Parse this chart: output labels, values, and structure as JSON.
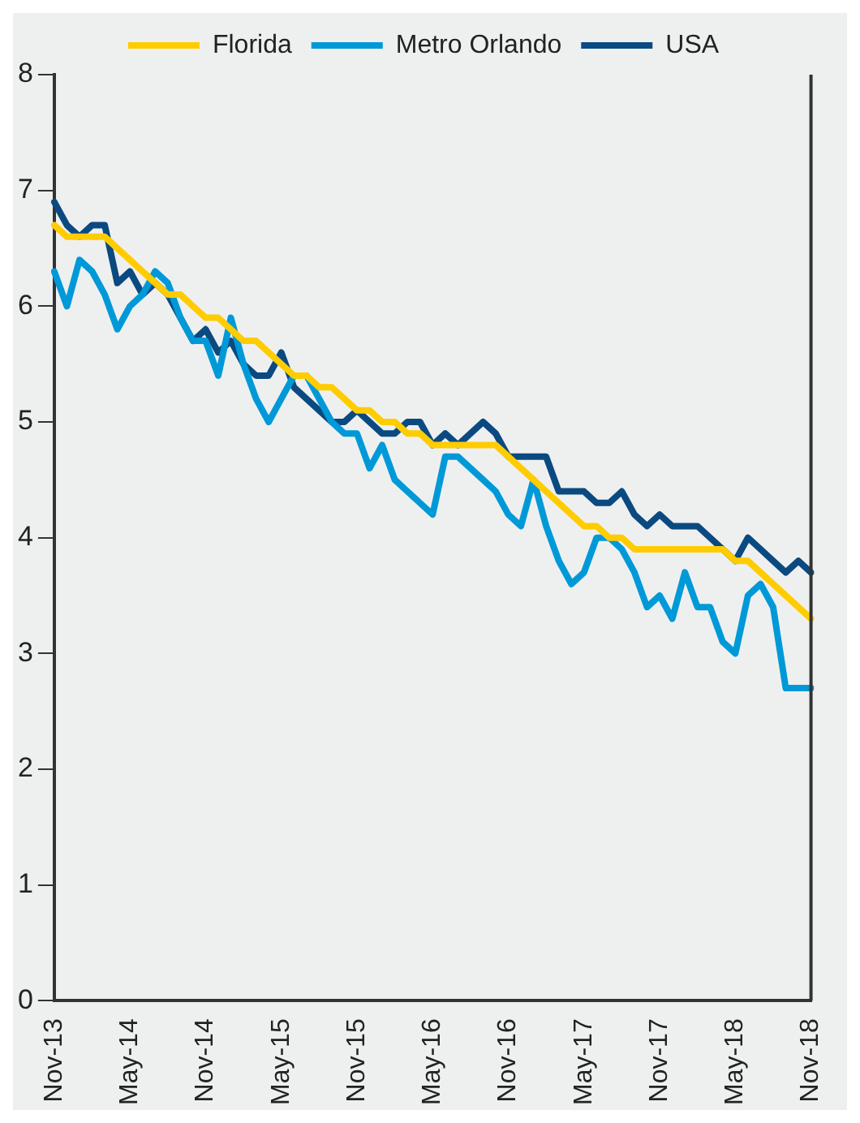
{
  "chart_data": {
    "type": "line",
    "categories": [
      "Nov-13",
      null,
      null,
      null,
      null,
      null,
      "May-14",
      null,
      null,
      null,
      null,
      null,
      "Nov-14",
      null,
      null,
      null,
      null,
      null,
      "May-15",
      null,
      null,
      null,
      null,
      null,
      "Nov-15",
      null,
      null,
      null,
      null,
      null,
      "May-16",
      null,
      null,
      null,
      null,
      null,
      "Nov-16",
      null,
      null,
      null,
      null,
      null,
      "May-17",
      null,
      null,
      null,
      null,
      null,
      "Nov-17",
      null,
      null,
      null,
      null,
      null,
      "May-18",
      null,
      null,
      null,
      null,
      null,
      "Nov-18"
    ],
    "series": [
      {
        "name": "Florida",
        "color": "#ffcc00",
        "values": [
          6.7,
          6.6,
          6.6,
          6.6,
          6.6,
          6.5,
          6.4,
          6.3,
          6.2,
          6.1,
          6.1,
          6.0,
          5.9,
          5.9,
          5.8,
          5.7,
          5.7,
          5.6,
          5.5,
          5.4,
          5.4,
          5.3,
          5.3,
          5.2,
          5.1,
          5.1,
          5.0,
          5.0,
          4.9,
          4.9,
          4.8,
          4.8,
          4.8,
          4.8,
          4.8,
          4.8,
          4.7,
          4.6,
          4.5,
          4.4,
          4.3,
          4.2,
          4.1,
          4.1,
          4.0,
          4.0,
          3.9,
          3.9,
          3.9,
          3.9,
          3.9,
          3.9,
          3.9,
          3.9,
          3.8,
          3.8,
          3.7,
          3.6,
          3.5,
          3.4,
          3.3
        ]
      },
      {
        "name": "Metro Orlando",
        "color": "#0099d8",
        "values": [
          6.3,
          6.0,
          6.4,
          6.3,
          6.1,
          5.8,
          6.0,
          6.1,
          6.3,
          6.2,
          5.9,
          5.7,
          5.7,
          5.4,
          5.9,
          5.5,
          5.2,
          5.0,
          5.2,
          5.4,
          5.4,
          5.2,
          5.0,
          4.9,
          4.9,
          4.6,
          4.8,
          4.5,
          4.4,
          4.3,
          4.2,
          4.7,
          4.7,
          4.6,
          4.5,
          4.4,
          4.2,
          4.1,
          4.5,
          4.1,
          3.8,
          3.6,
          3.7,
          4.0,
          4.0,
          3.9,
          3.7,
          3.4,
          3.5,
          3.3,
          3.7,
          3.4,
          3.4,
          3.1,
          3.0,
          3.5,
          3.6,
          3.4,
          2.7,
          2.7,
          2.7
        ]
      },
      {
        "name": "USA",
        "color": "#0b4a80",
        "values": [
          6.9,
          6.7,
          6.6,
          6.7,
          6.7,
          6.2,
          6.3,
          6.1,
          6.2,
          6.1,
          5.9,
          5.7,
          5.8,
          5.6,
          5.7,
          5.5,
          5.4,
          5.4,
          5.6,
          5.3,
          5.2,
          5.1,
          5.0,
          5.0,
          5.1,
          5.0,
          4.9,
          4.9,
          5.0,
          5.0,
          4.8,
          4.9,
          4.8,
          4.9,
          5.0,
          4.9,
          4.7,
          4.7,
          4.7,
          4.7,
          4.4,
          4.4,
          4.4,
          4.3,
          4.3,
          4.4,
          4.2,
          4.1,
          4.2,
          4.1,
          4.1,
          4.1,
          4.0,
          3.9,
          3.8,
          4.0,
          3.9,
          3.8,
          3.7,
          3.8,
          3.7
        ]
      }
    ],
    "ylim": [
      0,
      8
    ],
    "yticks": [
      0,
      1,
      2,
      3,
      4,
      5,
      6,
      7,
      8
    ],
    "grid": false,
    "legend": "top",
    "marker": "none",
    "line_style": "solid"
  }
}
